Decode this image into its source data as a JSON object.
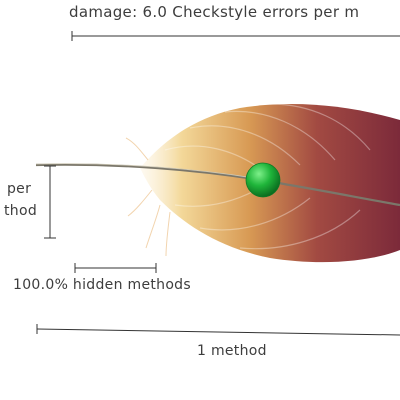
{
  "labels": {
    "damage": "damage: 6.0 Checkstyle errors per m",
    "per_fragment": "per",
    "method_fragment": "thod",
    "hidden_methods": "100.0% hidden methods",
    "method_count": "1 method"
  },
  "colors": {
    "feather_tip": "#f3d899",
    "feather_mid": "#d89a54",
    "feather_base": "#8a2f3e",
    "marker": "#1fb53a",
    "rule": "#333333"
  },
  "icons": {
    "feather": "feather-illustration",
    "marker": "green-ball-marker"
  }
}
